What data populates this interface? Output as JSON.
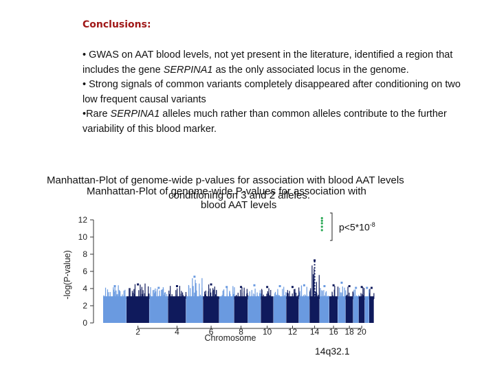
{
  "slide": {
    "heading": "Conclusions:",
    "bullet_1_pre": "• GWAS on AAT blood levels, not yet present in the literature, identified a region that includes the gene ",
    "bullet_1_gene": "SERPINA1",
    "bullet_1_post": " as the only associated locus in the genome.",
    "bullet_2": "• Strong signals of common variants completely disappeared after conditioning on two low frequent causal variants",
    "bullet_3_pre": "•Rare ",
    "bullet_3_gene": "SERPINA1",
    "bullet_3_post": " alleles much rather than common alleles contribute to the further variability of this blood marker.",
    "title_back": "Manhattan-Plot of genome-wide p-values for association with blood AAT levels",
    "title_back_2": "conditioning on 3 and 2 alleles.",
    "title_front_line1": "Manhattan-Plot of genome-wide P-values for association with",
    "title_front_line2": "blood AAT levels",
    "annotation_base": "p<5*10",
    "annotation_exp": "-8",
    "locus_label": "14q32.1"
  },
  "chart_data": {
    "type": "scatter",
    "xlabel": "Chromosome",
    "ylabel": "-log(P-value)",
    "ylim": [
      0,
      12
    ],
    "yticks": [
      "0",
      "2",
      "4",
      "6",
      "8",
      "10",
      "12"
    ],
    "xticks": [
      "2",
      "4",
      "6",
      "8",
      "10",
      "12",
      "14",
      "16",
      "18",
      "20"
    ],
    "chromosomes": [
      1,
      2,
      3,
      4,
      5,
      6,
      7,
      8,
      9,
      10,
      11,
      12,
      13,
      14,
      15,
      16,
      17,
      18,
      19,
      20,
      21,
      22
    ],
    "chromosome_peak": [
      4.4,
      4.6,
      4.2,
      4.4,
      5.5,
      4.6,
      4.3,
      4.3,
      4.5,
      4.3,
      4.4,
      4.3,
      4.5,
      7.4,
      4.4,
      4.5,
      4.8,
      4.4,
      4.2,
      4.3,
      4.2,
      4.2
    ],
    "significant_points": [
      {
        "chromosome": 14,
        "y": 12.2
      },
      {
        "chromosome": 14,
        "y": 11.9
      },
      {
        "chromosome": 14,
        "y": 11.6
      },
      {
        "chromosome": 14,
        "y": 11.2
      },
      {
        "chromosome": 14,
        "y": 10.8
      }
    ],
    "colors": {
      "odd": "#6a9ae0",
      "even": "#0f1a5c",
      "significant": "#2eaa58",
      "background": "#ffffff"
    }
  }
}
